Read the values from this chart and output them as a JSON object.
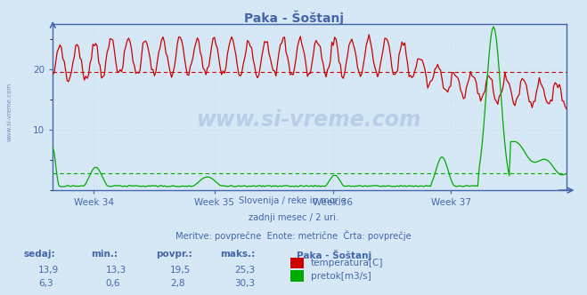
{
  "title": "Paka - Šoštanj",
  "bg_color": "#d6e8f5",
  "plot_bg_color": "#d6e8f5",
  "grid_color": "#c8d8e8",
  "text_color": "#4466aa",
  "spine_color": "#4466aa",
  "xlabel_weeks": [
    "Week 34",
    "Week 35",
    "Week 36",
    "Week 37"
  ],
  "ylim": [
    0,
    27.5
  ],
  "ytick_vals": [
    10,
    20
  ],
  "temp_color": "#cc0000",
  "flow_color": "#00aa00",
  "avg_temp": 19.5,
  "avg_flow": 2.8,
  "subtitle_lines": [
    "Slovenija / reke in morje.",
    "zadnji mesec / 2 uri.",
    "Meritve: povprečne  Enote: metrične  Črta: povprečje"
  ],
  "table_headers": [
    "sedaj:",
    "min.:",
    "povpr.:",
    "maks.:"
  ],
  "table_row1": [
    "13,9",
    "13,3",
    "19,5",
    "25,3"
  ],
  "table_row2": [
    "6,3",
    "0,6",
    "2,8",
    "30,3"
  ],
  "legend_title": "Paka - Šoštanj",
  "legend_items": [
    "temperatura[C]",
    "pretok[m3/s]"
  ],
  "legend_colors": [
    "#cc0000",
    "#00aa00"
  ]
}
